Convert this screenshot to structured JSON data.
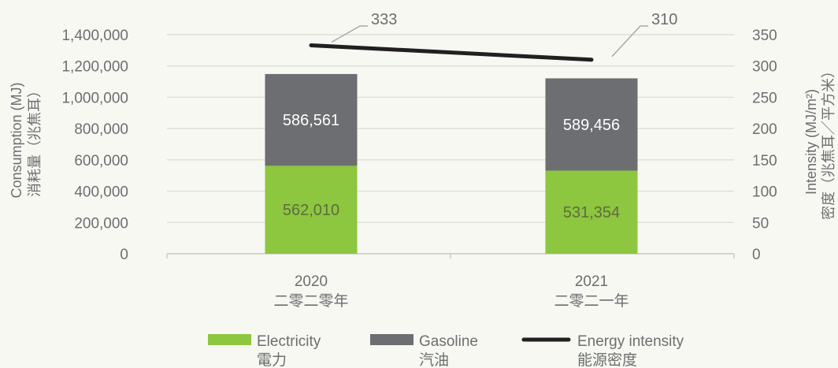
{
  "chart_data": {
    "type": "bar",
    "stacked": true,
    "categories": [
      "2020",
      "2021"
    ],
    "categories_sub": [
      "二零二零年",
      "二零二一年"
    ],
    "series": [
      {
        "name": "Electricity",
        "name_zh": "電力",
        "values": [
          562010,
          531354
        ],
        "value_labels": [
          "562,010",
          "531,354"
        ],
        "color": "#8dc63f"
      },
      {
        "name": "Gasoline",
        "name_zh": "汽油",
        "values": [
          586561,
          589456
        ],
        "value_labels": [
          "586,561",
          "589,456"
        ],
        "color": "#6d6e71"
      },
      {
        "name": "Energy intensity",
        "name_zh": "能源密度",
        "type": "line",
        "axis": "right",
        "values": [
          333,
          310
        ],
        "value_labels": [
          "333",
          "310"
        ],
        "color": "#231f20"
      }
    ],
    "ylabel": "Consumption (MJ)",
    "ylabel_zh": "消耗量（兆焦耳）",
    "y2label": "Intensity (MJ/m²)",
    "y2label_zh": "密度（兆焦耳／平方米）",
    "ylim": [
      0,
      1400000
    ],
    "y2lim": [
      0,
      350
    ],
    "yticks": [
      0,
      200000,
      400000,
      600000,
      800000,
      1000000,
      1200000,
      1400000
    ],
    "ytick_labels": [
      "0",
      "200,000",
      "400,000",
      "600,000",
      "800,000",
      "1,000,000",
      "1,200,000",
      "1,400,000"
    ],
    "y2ticks": [
      0,
      50,
      100,
      150,
      200,
      250,
      300,
      350
    ],
    "y2tick_labels": [
      "0",
      "50",
      "100",
      "150",
      "200",
      "250",
      "300",
      "350"
    ],
    "grid": true,
    "legend_position": "bottom"
  }
}
